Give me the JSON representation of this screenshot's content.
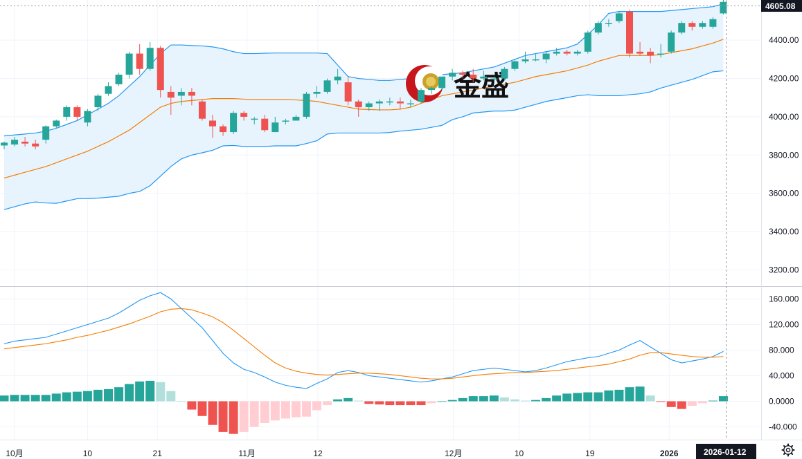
{
  "chart_data": [
    {
      "type": "candlestick",
      "panel": "price",
      "x_axis_labels": [
        "10月",
        "10",
        "21",
        "11月",
        "12",
        "12月",
        "10",
        "19",
        "2026"
      ],
      "y_ticks": [
        "3200.00",
        "3400.00",
        "3600.00",
        "3800.00",
        "4000.00",
        "4200.00",
        "4400.00"
      ],
      "ylim": [
        3115,
        4610
      ],
      "last_price": "4605.08",
      "current_date": "2026-01-12",
      "watermark": "金盛",
      "colors": {
        "up": "#26a69a",
        "down": "#ef5350",
        "band": "#2196f3",
        "mid": "#f57c00",
        "band_fill": "#e8f4fd"
      },
      "candles": [
        [
          3850,
          3865,
          3830,
          3870
        ],
        [
          3855,
          3880,
          3845,
          3895
        ],
        [
          3870,
          3860,
          3845,
          3895
        ],
        [
          3860,
          3845,
          3830,
          3880
        ],
        [
          3880,
          3950,
          3860,
          3955
        ],
        [
          3950,
          3980,
          3940,
          3985
        ],
        [
          4000,
          4050,
          3980,
          4060
        ],
        [
          4050,
          4000,
          3980,
          4060
        ],
        [
          3970,
          4030,
          3950,
          4040
        ],
        [
          4050,
          4110,
          4030,
          4120
        ],
        [
          4120,
          4160,
          4110,
          4180
        ],
        [
          4170,
          4220,
          4160,
          4230
        ],
        [
          4220,
          4330,
          4200,
          4340
        ],
        [
          4330,
          4250,
          4220,
          4380
        ],
        [
          4250,
          4360,
          4240,
          4390
        ],
        [
          4360,
          4140,
          4100,
          4370
        ],
        [
          4130,
          4100,
          4010,
          4160
        ],
        [
          4110,
          4130,
          4060,
          4150
        ],
        [
          4130,
          4110,
          4060,
          4150
        ],
        [
          4080,
          3990,
          3980,
          4090
        ],
        [
          3980,
          3950,
          3890,
          4010
        ],
        [
          3950,
          3920,
          3900,
          3960
        ],
        [
          3920,
          4020,
          3910,
          4030
        ],
        [
          4020,
          4000,
          3980,
          4030
        ],
        [
          3990,
          3990,
          3960,
          4000
        ],
        [
          3990,
          3930,
          3920,
          4010
        ],
        [
          3920,
          3970,
          3920,
          4000
        ],
        [
          3980,
          3980,
          3960,
          3990
        ],
        [
          3980,
          4000,
          3980,
          4010
        ],
        [
          4000,
          4120,
          3990,
          4130
        ],
        [
          4120,
          4130,
          4100,
          4160
        ],
        [
          4130,
          4190,
          4120,
          4200
        ],
        [
          4190,
          4210,
          4170,
          4250
        ],
        [
          4180,
          4080,
          4060,
          4210
        ],
        [
          4080,
          4050,
          4000,
          4090
        ],
        [
          4050,
          4070,
          4030,
          4080
        ],
        [
          4070,
          4080,
          4030,
          4090
        ],
        [
          4080,
          4080,
          4060,
          4100
        ],
        [
          4080,
          4070,
          4040,
          4100
        ],
        [
          4070,
          4070,
          4050,
          4090
        ],
        [
          4080,
          4140,
          4070,
          4150
        ],
        [
          4140,
          4150,
          4120,
          4160
        ],
        [
          4150,
          4210,
          4140,
          4210
        ],
        [
          4210,
          4230,
          4190,
          4250
        ],
        [
          4230,
          4220,
          4200,
          4240
        ],
        [
          4220,
          4200,
          4180,
          4250
        ],
        [
          4200,
          4210,
          4190,
          4240
        ],
        [
          4200,
          4200,
          4190,
          4210
        ],
        [
          4200,
          4250,
          4190,
          4260
        ],
        [
          4250,
          4290,
          4240,
          4300
        ],
        [
          4290,
          4300,
          4280,
          4340
        ],
        [
          4300,
          4300,
          4290,
          4330
        ],
        [
          4300,
          4330,
          4280,
          4340
        ],
        [
          4330,
          4340,
          4320,
          4360
        ],
        [
          4340,
          4330,
          4320,
          4350
        ],
        [
          4330,
          4340,
          4320,
          4350
        ],
        [
          4340,
          4440,
          4330,
          4450
        ],
        [
          4440,
          4490,
          4430,
          4500
        ],
        [
          4490,
          4490,
          4470,
          4510
        ],
        [
          4500,
          4540,
          4490,
          4550
        ],
        [
          4550,
          4330,
          4310,
          4560
        ],
        [
          4340,
          4330,
          4320,
          4390
        ],
        [
          4340,
          4320,
          4280,
          4360
        ],
        [
          4330,
          4330,
          4310,
          4380
        ],
        [
          4340,
          4440,
          4330,
          4450
        ],
        [
          4440,
          4490,
          4430,
          4500
        ],
        [
          4490,
          4470,
          4450,
          4500
        ],
        [
          4470,
          4490,
          4460,
          4500
        ],
        [
          4470,
          4510,
          4460,
          4520
        ],
        [
          4540,
          4600,
          4535,
          4610
        ]
      ],
      "bollinger_upper": [
        3900,
        3905,
        3910,
        3915,
        3925,
        3940,
        3960,
        3980,
        4010,
        4040,
        4070,
        4110,
        4160,
        4210,
        4270,
        4330,
        4375,
        4375,
        4372,
        4370,
        4365,
        4355,
        4340,
        4330,
        4330,
        4332,
        4333,
        4333,
        4333,
        4333,
        4333,
        4330,
        4270,
        4210,
        4200,
        4195,
        4190,
        4190,
        4195,
        4200,
        4205,
        4210,
        4220,
        4225,
        4230,
        4240,
        4250,
        4260,
        4280,
        4300,
        4320,
        4330,
        4340,
        4350,
        4360,
        4380,
        4430,
        4480,
        4540,
        4550,
        4550,
        4550,
        4550,
        4550,
        4555,
        4560,
        4565,
        4570,
        4575,
        4590
      ],
      "bollinger_mid": [
        3680,
        3695,
        3710,
        3725,
        3740,
        3760,
        3780,
        3800,
        3820,
        3845,
        3870,
        3900,
        3930,
        3970,
        4010,
        4050,
        4070,
        4080,
        4085,
        4090,
        4095,
        4095,
        4095,
        4092,
        4090,
        4090,
        4090,
        4090,
        4088,
        4085,
        4080,
        4070,
        4060,
        4050,
        4040,
        4038,
        4036,
        4036,
        4040,
        4050,
        4070,
        4090,
        4110,
        4120,
        4130,
        4140,
        4150,
        4160,
        4170,
        4180,
        4195,
        4210,
        4220,
        4230,
        4240,
        4255,
        4270,
        4290,
        4305,
        4320,
        4320,
        4320,
        4320,
        4325,
        4335,
        4345,
        4355,
        4370,
        4385,
        4405
      ],
      "bollinger_lower": [
        3515,
        3530,
        3545,
        3555,
        3550,
        3548,
        3560,
        3572,
        3573,
        3575,
        3580,
        3585,
        3600,
        3610,
        3640,
        3690,
        3740,
        3780,
        3800,
        3812,
        3825,
        3848,
        3850,
        3845,
        3845,
        3845,
        3848,
        3848,
        3848,
        3860,
        3875,
        3910,
        3915,
        3915,
        3915,
        3915,
        3915,
        3918,
        3925,
        3930,
        3935,
        3945,
        3955,
        3985,
        4000,
        4020,
        4025,
        4030,
        4030,
        4035,
        4050,
        4065,
        4080,
        4090,
        4100,
        4110,
        4115,
        4110,
        4110,
        4110,
        4115,
        4120,
        4130,
        4150,
        4165,
        4180,
        4195,
        4215,
        4235,
        4240
      ]
    },
    {
      "type": "macd",
      "panel": "indicator",
      "y_ticks": [
        "160.000",
        "120.000",
        "80.000",
        "40.000",
        "0.0000",
        "-40.000"
      ],
      "ylim": [
        -60,
        180
      ],
      "macd": [
        90,
        94,
        96,
        98,
        100,
        105,
        110,
        115,
        120,
        125,
        130,
        138,
        148,
        158,
        165,
        170,
        160,
        145,
        130,
        115,
        95,
        75,
        60,
        50,
        45,
        38,
        30,
        25,
        22,
        20,
        28,
        35,
        45,
        48,
        45,
        40,
        38,
        36,
        34,
        32,
        30,
        32,
        35,
        38,
        43,
        48,
        50,
        52,
        50,
        48,
        46,
        48,
        52,
        57,
        62,
        65,
        68,
        70,
        75,
        80,
        88,
        95,
        85,
        75,
        65,
        60,
        63,
        66,
        70,
        78
      ],
      "signal": [
        82,
        84,
        86,
        88,
        90,
        93,
        96,
        100,
        103,
        107,
        111,
        116,
        121,
        127,
        133,
        140,
        144,
        145,
        143,
        138,
        132,
        123,
        111,
        98,
        85,
        72,
        60,
        52,
        47,
        44,
        42,
        41,
        42,
        43,
        44,
        44,
        43,
        42,
        40,
        38,
        36,
        35,
        35,
        36,
        38,
        40,
        42,
        43,
        44,
        45,
        45,
        46,
        47,
        48,
        50,
        52,
        54,
        56,
        58,
        62,
        66,
        72,
        76,
        76,
        74,
        72,
        70,
        69,
        69,
        70
      ],
      "histogram": [
        9,
        10,
        10,
        10,
        10,
        12,
        14,
        15,
        16,
        18,
        19,
        22,
        27,
        31,
        32,
        30,
        16,
        0,
        -13,
        -23,
        -37,
        -48,
        -51,
        -48,
        -40,
        -34,
        -30,
        -27,
        -25,
        -24,
        -14,
        -6,
        3,
        5,
        1,
        -4,
        -5,
        -6,
        -6,
        -6,
        -6,
        -3,
        0,
        2,
        5,
        8,
        8,
        9,
        6,
        3,
        1,
        2,
        5,
        9,
        12,
        13,
        14,
        14,
        17,
        18,
        22,
        23,
        9,
        -1,
        -9,
        -12,
        -7,
        -3,
        1,
        8
      ]
    }
  ],
  "ui": {
    "settings_icon": "gear-icon"
  }
}
